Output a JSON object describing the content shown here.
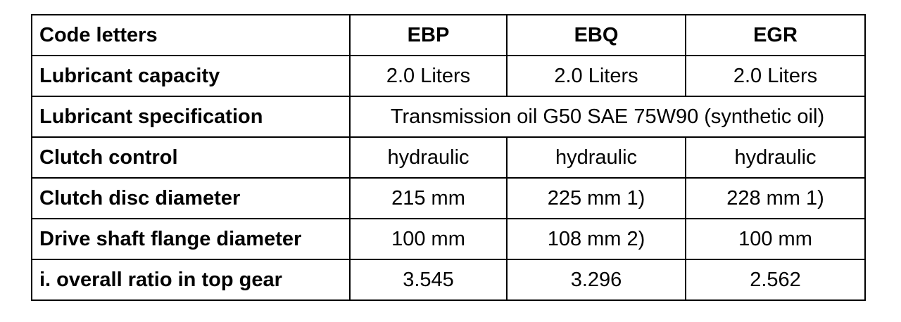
{
  "table": {
    "header": [
      "Code letters",
      "EBP",
      "EBQ",
      "EGR"
    ],
    "rows": [
      [
        "Lubricant capacity",
        "2.0 Liters",
        "2.0 Liters",
        "2.0 Liters"
      ],
      [
        "Lubricant specification",
        "Transmission oil G50 SAE 75W90 (synthetic oil)"
      ],
      [
        "Clutch control",
        "hydraulic",
        "hydraulic",
        "hydraulic"
      ],
      [
        "Clutch disc diameter",
        "215 mm",
        "225 mm 1)",
        "228 mm 1)"
      ],
      [
        "Drive shaft flange diameter",
        "100 mm",
        "108 mm 2)",
        "100 mm"
      ],
      [
        "i. overall ratio in top gear",
        "3.545",
        "3.296",
        "2.562"
      ]
    ]
  }
}
